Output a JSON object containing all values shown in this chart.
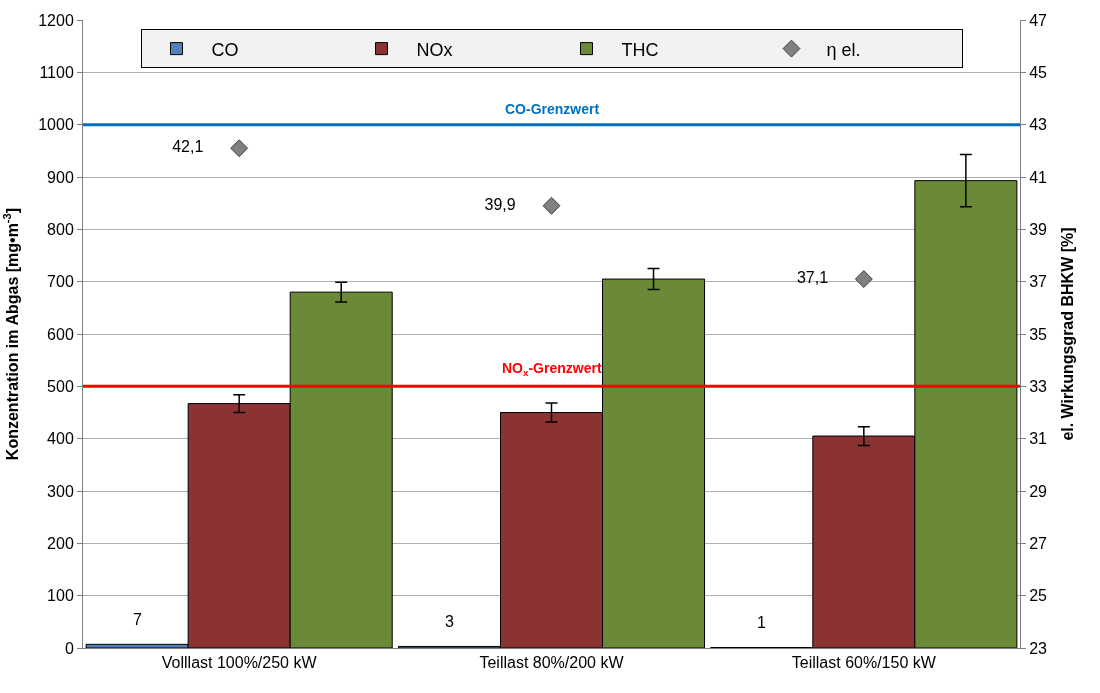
{
  "chart_data": {
    "type": "bar",
    "ylabel": "Konzentration im Abgas [mg•m$^{-3}$]",
    "y2label": "el. Wirkungsgrad BHKW [%]",
    "categories": [
      "Volllast 100%/250 kW",
      "Teillast 80%/200 kW",
      "Teillast 60%/150 kW"
    ],
    "series": [
      {
        "name": "CO",
        "color": "#4f81bd",
        "values": [
          7,
          3,
          1
        ],
        "value_labels": [
          "7",
          "3",
          "1"
        ]
      },
      {
        "name": "NOx",
        "color": "#8b3232",
        "values": [
          467,
          450,
          405
        ],
        "errors": [
          17,
          18,
          18
        ]
      },
      {
        "name": "THC",
        "color": "#6b8a38",
        "values": [
          680,
          705,
          893
        ],
        "errors": [
          19,
          20,
          50
        ]
      },
      {
        "name": "η el.",
        "type": "scatter",
        "axis": "y2",
        "color": "#808080",
        "marker": "diamond",
        "values": [
          42.1,
          39.9,
          37.1
        ],
        "value_labels": [
          "42,1",
          "39,9",
          "37,1"
        ]
      }
    ],
    "ylim": [
      0,
      1200
    ],
    "yticks": [
      0,
      100,
      200,
      300,
      400,
      500,
      600,
      700,
      800,
      900,
      1000,
      1100,
      1200
    ],
    "y2lim": [
      23,
      47
    ],
    "y2ticks": [
      23,
      25,
      27,
      29,
      31,
      33,
      35,
      37,
      39,
      41,
      43,
      45,
      47
    ],
    "ref_lines": [
      {
        "axis": "y",
        "value": 1000,
        "label": "CO-Grenzwert",
        "color": "#0070c0"
      },
      {
        "axis": "y",
        "value": 500,
        "label": "NO$_{x}$-Grenzwert",
        "color": "#ff0000"
      }
    ],
    "grid": "y",
    "legend": "top"
  }
}
